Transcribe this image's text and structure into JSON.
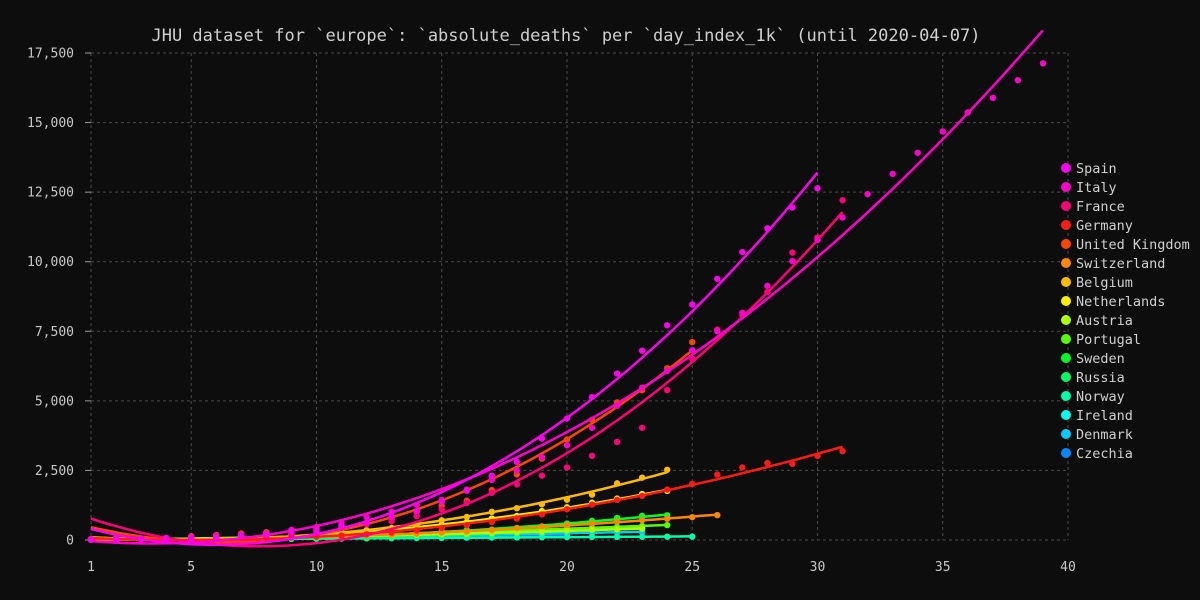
{
  "chart_data": {
    "type": "scatter",
    "title": "JHU dataset for `europe`: `absolute_deaths` per `day_index_1k` (until 2020-04-07)",
    "xlabel": "",
    "ylabel": "",
    "xlim": [
      1,
      40
    ],
    "ylim": [
      0,
      17500
    ],
    "x_ticks": [
      1,
      5,
      10,
      15,
      20,
      25,
      30,
      35,
      40
    ],
    "y_ticks": [
      0,
      2500,
      5000,
      7500,
      10000,
      12500,
      15000,
      17500
    ],
    "x_tick_labels": [
      "1",
      "5",
      "10",
      "15",
      "20",
      "25",
      "30",
      "35",
      "40"
    ],
    "y_tick_labels": [
      "0",
      "2,500",
      "5,000",
      "7,500",
      "10,000",
      "12,500",
      "15,000",
      "17,500"
    ],
    "grid": true,
    "legend_position": "right",
    "series": [
      {
        "name": "Spain",
        "color": "#ff00ee",
        "x": [
          1,
          2,
          3,
          4,
          5,
          6,
          7,
          8,
          9,
          10,
          11,
          12,
          13,
          14,
          15,
          16,
          17,
          18,
          19,
          20,
          21,
          22,
          23,
          24,
          25,
          26,
          27,
          28,
          29,
          30
        ],
        "y": [
          10,
          17,
          28,
          35,
          54,
          55,
          133,
          195,
          289,
          342,
          533,
          623,
          830,
          1043,
          1375,
          1772,
          2311,
          2808,
          3647,
          4365,
          5138,
          5982,
          6803,
          7716,
          8464,
          9387,
          10348,
          11198,
          11947,
          12641
        ]
      },
      {
        "name": "Italy",
        "color": "#ff00cc",
        "x": [
          1,
          2,
          3,
          4,
          5,
          6,
          7,
          8,
          9,
          10,
          11,
          12,
          13,
          14,
          15,
          16,
          17,
          18,
          19,
          20,
          21,
          22,
          23,
          24,
          25,
          26,
          27,
          28,
          29,
          30,
          31,
          32,
          33,
          34,
          35,
          36,
          37,
          38,
          39
        ],
        "y": [
          29,
          34,
          52,
          79,
          107,
          148,
          197,
          233,
          366,
          463,
          631,
          827,
          1016,
          1266,
          1441,
          1809,
          2158,
          2503,
          2978,
          3405,
          4032,
          4825,
          5476,
          6077,
          6820,
          7503,
          8165,
          9134,
          10023,
          10779,
          11591,
          12428,
          13155,
          13915,
          14681,
          15362,
          15887,
          16523,
          17127
        ]
      },
      {
        "name": "France",
        "color": "#ff0077",
        "x": [
          1,
          2,
          3,
          4,
          5,
          6,
          7,
          8,
          9,
          10,
          11,
          12,
          13,
          14,
          15,
          16,
          17,
          18,
          19,
          20,
          21,
          22,
          23,
          24,
          25,
          26,
          27,
          28,
          29,
          30,
          31
        ],
        "y": [
          33,
          48,
          61,
          79,
          91,
          91,
          149,
          149,
          149,
          244,
          450,
          562,
          674,
          860,
          1100,
          1331,
          1696,
          1995,
          2314,
          2606,
          3024,
          3523,
          4032,
          5387,
          6507,
          7560,
          8078,
          8911,
          10328,
          10869,
          12210
        ]
      },
      {
        "name": "Germany",
        "color": "#ff1a1a",
        "x": [
          1,
          2,
          3,
          4,
          5,
          6,
          7,
          8,
          9,
          10,
          11,
          12,
          13,
          14,
          15,
          16,
          17,
          18,
          19,
          20,
          21,
          22,
          23,
          24,
          25,
          26,
          27,
          28,
          29,
          30,
          31
        ],
        "y": [
          9,
          11,
          17,
          24,
          28,
          44,
          67,
          84,
          94,
          123,
          157,
          206,
          267,
          342,
          433,
          533,
          645,
          775,
          920,
          1107,
          1275,
          1444,
          1584,
          1810,
          2016,
          2349,
          2607,
          2767,
          2736,
          3022,
          3194
        ]
      },
      {
        "name": "United Kingdom",
        "color": "#ff4400",
        "x": [
          1,
          2,
          3,
          4,
          5,
          6,
          7,
          8,
          9,
          10,
          11,
          12,
          13,
          14,
          15,
          16,
          17,
          18,
          19,
          20,
          21,
          22,
          23,
          24,
          25
        ],
        "y": [
          21,
          56,
          56,
          72,
          138,
          178,
          234,
          282,
          336,
          423,
          466,
          580,
          761,
          1021,
          1231,
          1411,
          1793,
          2357,
          2926,
          3611,
          4320,
          4943,
          5385,
          6171,
          7111
        ]
      },
      {
        "name": "Switzerland",
        "color": "#ff8800",
        "x": [
          1,
          2,
          3,
          4,
          5,
          6,
          7,
          8,
          9,
          10,
          11,
          12,
          13,
          14,
          15,
          16,
          17,
          18,
          19,
          20,
          21,
          22,
          23,
          24,
          25,
          26
        ],
        "y": [
          11,
          14,
          14,
          27,
          28,
          41,
          54,
          75,
          98,
          120,
          122,
          153,
          191,
          231,
          264,
          300,
          359,
          433,
          488,
          536,
          591,
          666,
          715,
          765,
          821,
          895
        ]
      },
      {
        "name": "Belgium",
        "color": "#ffbb00",
        "x": [
          1,
          2,
          3,
          4,
          5,
          6,
          7,
          8,
          9,
          10,
          11,
          12,
          13,
          14,
          15,
          16,
          17,
          18,
          19,
          20,
          21,
          22,
          23,
          24
        ],
        "y": [
          10,
          14,
          21,
          37,
          67,
          75,
          88,
          122,
          178,
          220,
          289,
          353,
          431,
          513,
          705,
          828,
          1011,
          1143,
          1283,
          1447,
          1632,
          2035,
          2240,
          2523
        ]
      },
      {
        "name": "Netherlands",
        "color": "#ffee00",
        "x": [
          1,
          2,
          3,
          4,
          5,
          6,
          7,
          8,
          9,
          10,
          11,
          12,
          13,
          14,
          15,
          16,
          17,
          18,
          19,
          20,
          21,
          22,
          23,
          24
        ],
        "y": [
          10,
          12,
          20,
          24,
          43,
          58,
          76,
          106,
          136,
          179,
          213,
          276,
          356,
          434,
          546,
          639,
          771,
          864,
          1039,
          1173,
          1339,
          1487,
          1651,
          1766
        ]
      },
      {
        "name": "Austria",
        "color": "#aaff00",
        "x": [
          1,
          2,
          3,
          4,
          5,
          6,
          7,
          8,
          9,
          10,
          11,
          12,
          13,
          14,
          15,
          16,
          17,
          18,
          19,
          20,
          21,
          22,
          23
        ],
        "y": [
          16,
          21,
          28,
          30,
          49,
          58,
          68,
          86,
          108,
          128,
          146,
          158,
          168,
          186,
          204,
          220,
          243,
          273,
          295,
          337,
          368,
          384,
          410
        ]
      },
      {
        "name": "Portugal",
        "color": "#55ff00",
        "x": [
          1,
          2,
          3,
          4,
          5,
          6,
          7,
          8,
          9,
          10,
          11,
          12,
          13,
          14,
          15,
          16,
          17,
          18,
          19,
          20,
          21,
          22,
          23,
          24
        ],
        "y": [
          12,
          14,
          23,
          33,
          43,
          60,
          76,
          100,
          119,
          140,
          160,
          187,
          209,
          246,
          266,
          295,
          311,
          345,
          380,
          409,
          435,
          470,
          504,
          535
        ]
      },
      {
        "name": "Sweden",
        "color": "#00ff22",
        "x": [
          1,
          2,
          3,
          4,
          5,
          6,
          7,
          8,
          9,
          10,
          11,
          12,
          13,
          14,
          15,
          16,
          17,
          18,
          19,
          20,
          21,
          22,
          23,
          24
        ],
        "y": [
          10,
          12,
          20,
          21,
          25,
          36,
          62,
          77,
          105,
          105,
          110,
          146,
          180,
          239,
          308,
          358,
          373,
          401,
          477,
          591,
          687,
          793,
          870,
          887
        ]
      },
      {
        "name": "Russia",
        "color": "#00ff66",
        "x": [
          1,
          2,
          3,
          4,
          5,
          6,
          7,
          8,
          9,
          10,
          11,
          12,
          13,
          14,
          15,
          16,
          17,
          18,
          19,
          20,
          21,
          22,
          23
        ],
        "y": [
          17,
          24,
          30,
          34,
          43,
          45,
          47,
          58,
          63,
          76,
          96,
          106,
          130,
          148,
          170,
          200,
          230,
          260,
          300,
          330,
          360,
          390,
          420
        ]
      },
      {
        "name": "Norway",
        "color": "#00ffaa",
        "x": [
          1,
          2,
          3,
          4,
          5,
          6,
          7,
          8,
          9,
          10,
          11,
          12,
          13,
          14,
          15,
          16,
          17,
          18,
          19,
          20,
          21,
          22,
          23,
          24,
          25
        ],
        "y": [
          10,
          12,
          14,
          19,
          23,
          25,
          32,
          37,
          39,
          44,
          50,
          59,
          62,
          71,
          76,
          86,
          89,
          91,
          101,
          108,
          113,
          113,
          115,
          120,
          123
        ]
      },
      {
        "name": "Ireland",
        "color": "#00ffee",
        "x": [
          1,
          2,
          3,
          4,
          5,
          6,
          7,
          8,
          9,
          10,
          11,
          12,
          13,
          14,
          15,
          16,
          17,
          18,
          19,
          20,
          21,
          22
        ],
        "y": [
          10,
          19,
          22,
          36,
          46,
          54,
          71,
          85,
          98,
          120,
          137,
          158,
          174,
          210,
          235,
          263,
          287,
          320,
          334,
          365,
          390,
          410
        ]
      },
      {
        "name": "Denmark",
        "color": "#00ccff",
        "x": [
          1,
          2,
          3,
          4,
          5,
          6,
          7,
          8,
          9,
          10,
          11,
          12,
          13,
          14,
          15,
          16,
          17,
          18,
          19,
          20,
          21,
          22,
          23
        ],
        "y": [
          13,
          24,
          32,
          34,
          41,
          52,
          65,
          72,
          77,
          90,
          104,
          123,
          139,
          161,
          179,
          187,
          203,
          218,
          237,
          247,
          260,
          273,
          285
        ]
      },
      {
        "name": "Czechia",
        "color": "#0088ff",
        "x": [
          1,
          2,
          3,
          4,
          5,
          6,
          7,
          8,
          9,
          10,
          11,
          12,
          13,
          14,
          15,
          16,
          17,
          18,
          19,
          20
        ],
        "y": [
          11,
          16,
          17,
          23,
          24,
          31,
          39,
          44,
          53,
          59,
          67,
          78,
          88,
          99,
          112,
          119,
          129,
          138,
          143,
          161
        ]
      }
    ]
  }
}
